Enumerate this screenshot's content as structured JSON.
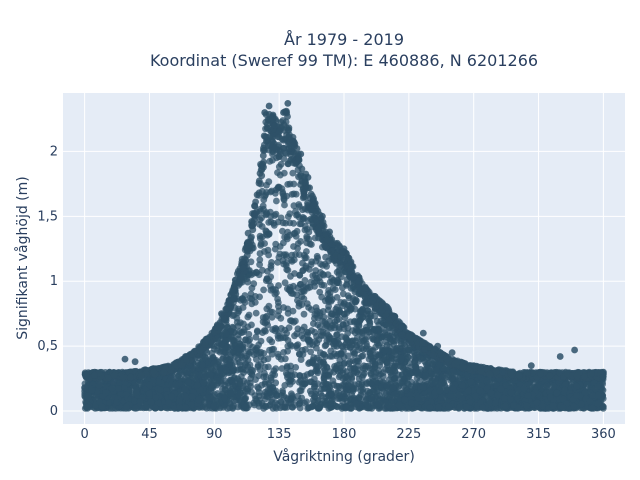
{
  "chart_data": {
    "type": "scatter",
    "title": "År 1979 - 2019",
    "subtitle": "Koordinat (Sweref 99 TM): E 460886, N 6201266",
    "xlabel": "Vågriktning (grader)",
    "ylabel": "Signifikant våghöjd (m)",
    "xlim": [
      -15,
      375
    ],
    "ylim": [
      -0.1,
      2.45
    ],
    "x_ticks": [
      0,
      45,
      90,
      135,
      180,
      225,
      270,
      315,
      360
    ],
    "x_tick_labels": [
      "0",
      "45",
      "90",
      "135",
      "180",
      "225",
      "270",
      "315",
      "360"
    ],
    "y_ticks": [
      0,
      0.5,
      1,
      1.5,
      2
    ],
    "y_tick_labels": [
      "0",
      "0,5",
      "1",
      "1,5",
      "2"
    ],
    "grid": true,
    "colors": {
      "marker": "#2e5168",
      "plot_bg": "#e5ecf6",
      "grid": "#ffffff",
      "text": "#2a3f5f"
    },
    "envelope": {
      "description_x": [
        0,
        30,
        60,
        75,
        90,
        100,
        110,
        120,
        126,
        130,
        135,
        140,
        145,
        150,
        160,
        170,
        180,
        195,
        210,
        225,
        240,
        255,
        270,
        300,
        330,
        360
      ],
      "upper_y": [
        0.3,
        0.3,
        0.35,
        0.45,
        0.62,
        0.85,
        1.2,
        1.7,
        2.3,
        2.3,
        2.2,
        2.35,
        2.1,
        1.95,
        1.6,
        1.35,
        1.25,
        0.95,
        0.8,
        0.6,
        0.5,
        0.4,
        0.35,
        0.3,
        0.3,
        0.3
      ]
    },
    "series": [
      {
        "values_sample": [
          [
            0,
            0.18
          ],
          [
            10,
            0.2
          ],
          [
            20,
            0.22
          ],
          [
            28,
            0.4
          ],
          [
            35,
            0.38
          ],
          [
            45,
            0.2
          ],
          [
            60,
            0.25
          ],
          [
            70,
            0.42
          ],
          [
            85,
            0.55
          ],
          [
            95,
            0.75
          ],
          [
            100,
            0.83
          ],
          [
            110,
            1.1
          ],
          [
            118,
            1.5
          ],
          [
            125,
            2.3
          ],
          [
            128,
            2.35
          ],
          [
            132,
            2.2
          ],
          [
            135,
            2.15
          ],
          [
            138,
            2.3
          ],
          [
            141,
            2.37
          ],
          [
            145,
            2.05
          ],
          [
            150,
            1.98
          ],
          [
            155,
            1.8
          ],
          [
            160,
            1.6
          ],
          [
            165,
            1.5
          ],
          [
            170,
            1.38
          ],
          [
            180,
            1.25
          ],
          [
            185,
            1.1
          ],
          [
            190,
            1.0
          ],
          [
            200,
            0.85
          ],
          [
            210,
            0.8
          ],
          [
            220,
            0.65
          ],
          [
            235,
            0.6
          ],
          [
            245,
            0.5
          ],
          [
            255,
            0.45
          ],
          [
            270,
            0.35
          ],
          [
            290,
            0.3
          ],
          [
            310,
            0.35
          ],
          [
            330,
            0.42
          ],
          [
            340,
            0.47
          ],
          [
            360,
            0.3
          ]
        ]
      }
    ]
  }
}
